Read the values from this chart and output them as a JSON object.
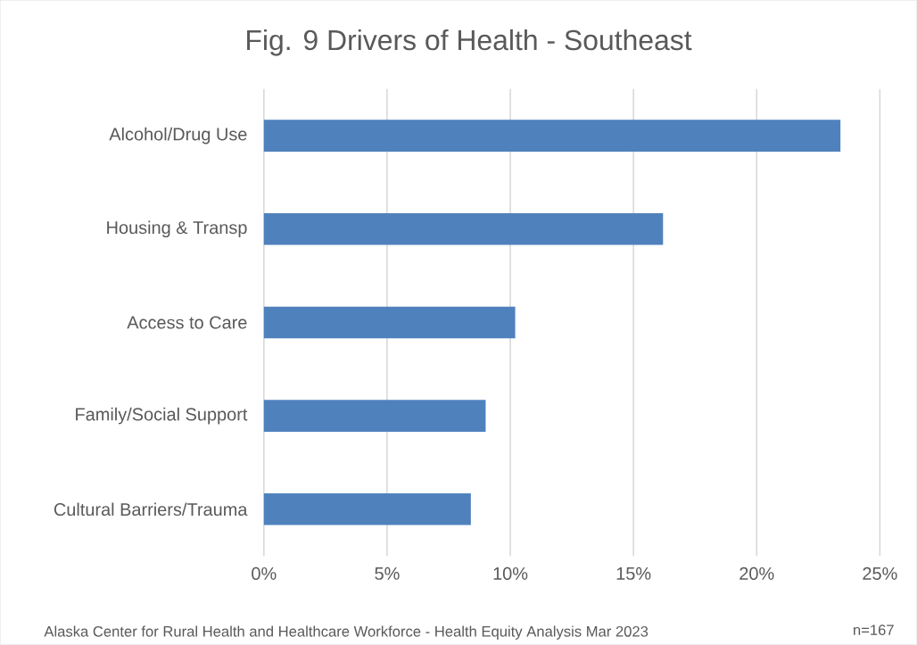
{
  "chart_data": {
    "type": "bar",
    "orientation": "horizontal",
    "title": "Fig. 9 Drivers of Health - Southeast",
    "categories": [
      "Alcohol/Drug Use",
      "Housing & Transp",
      "Access to Care",
      "Family/Social Support",
      "Cultural Barriers/Trauma"
    ],
    "values": [
      23.4,
      16.2,
      10.2,
      9.0,
      8.4
    ],
    "color": "#4f81bd",
    "xlim": [
      0,
      25
    ],
    "xticks": [
      {
        "value": 0,
        "label": "0%"
      },
      {
        "value": 5,
        "label": "5%"
      },
      {
        "value": 10,
        "label": "10%"
      },
      {
        "value": 15,
        "label": "15%"
      },
      {
        "value": 20,
        "label": "20%"
      },
      {
        "value": 25,
        "label": "25%"
      }
    ],
    "grid": "x",
    "annotations": [
      "Alaska Center for Rural Health and Healthcare Workforce - Health Equity Analysis Mar 2023",
      "n=167"
    ]
  }
}
